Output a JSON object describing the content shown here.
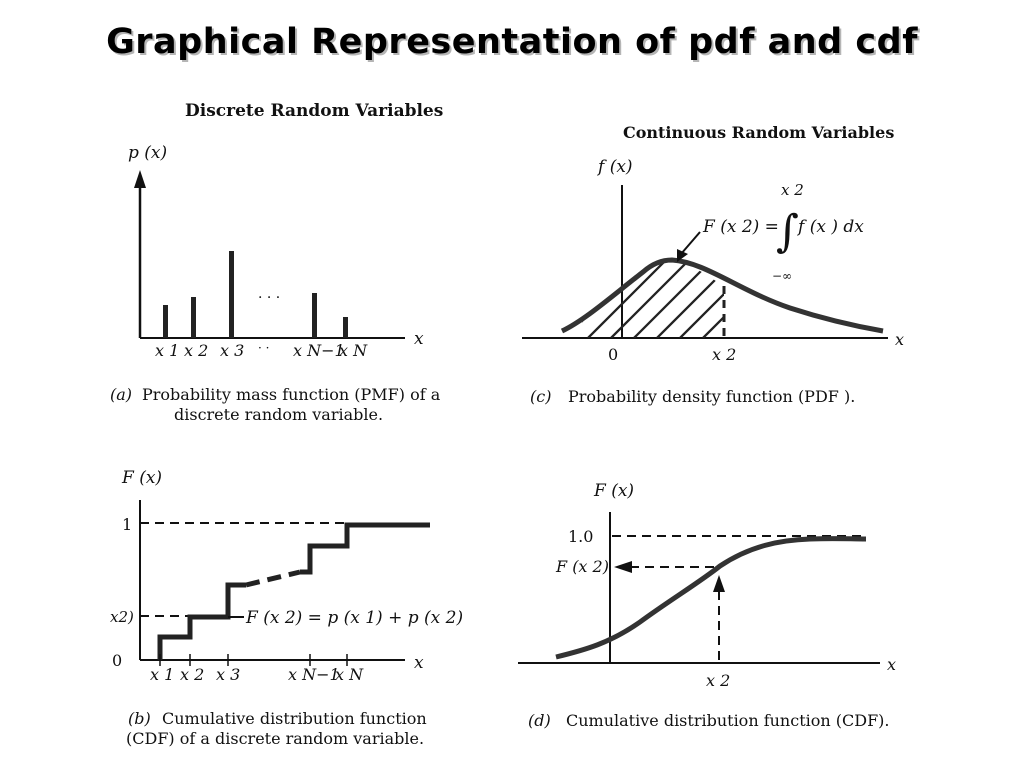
{
  "title": "Graphical Representation of pdf and cdf",
  "panel_a": {
    "heading": "Discrete Random Variables",
    "ylabel": "p (x)",
    "xlabel": "x",
    "ticks": [
      "x 1",
      "x 2",
      "x 3",
      "x N−1",
      "x N"
    ],
    "caption_tag": "(a)",
    "caption_line1": "Probability mass function (PMF) of a",
    "caption_line2": "discrete random variable."
  },
  "panel_b": {
    "ylabel": "F (x)",
    "xlabel": "x",
    "y_one": "1",
    "y_zero": "0",
    "y_x2": "x2)",
    "annotation": "F (x 2) = p (x 1) + p (x 2)",
    "ticks": [
      "x 1",
      "x 2",
      "x 3",
      "x N−1",
      "x N"
    ],
    "caption_tag": "(b)",
    "caption_line1": "Cumulative distribution function",
    "caption_line2": "(CDF) of a discrete random variable."
  },
  "panel_c": {
    "heading": "Continuous Random Variables",
    "ylabel": "f (x)",
    "xlabel": "x",
    "origin": "0",
    "tick_x2": "x 2",
    "formula_lhs": "F (x 2) =",
    "formula_rhs": "f (x ) dx",
    "upper_limit": "x 2",
    "lower_limit": "−∞",
    "caption_tag": "(c)",
    "caption_line1": "Probability density function (PDF )."
  },
  "panel_d": {
    "ylabel": "F (x)",
    "xlabel": "x",
    "y_one": "1.0",
    "y_fx2": "F (x 2)",
    "tick_x2": "x 2",
    "caption_tag": "(d)",
    "caption_line1": "Cumulative distribution function (CDF)."
  }
}
